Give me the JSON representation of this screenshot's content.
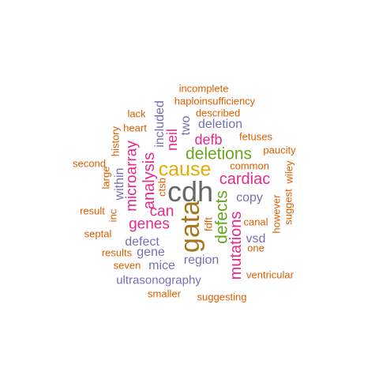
{
  "colors": {
    "orange": "#d95f02",
    "purple": "#7570b3",
    "magenta": "#e7298a",
    "green": "#66a61e",
    "gold": "#e6ab02",
    "brown": "#a6761d",
    "gray": "#666666"
  },
  "words": [
    {
      "text": "cdh",
      "color": "#666666"
    },
    {
      "text": "gata",
      "color": "#a6761d"
    },
    {
      "text": "cause",
      "color": "#e6ab02"
    },
    {
      "text": "deletions",
      "color": "#66a61e"
    },
    {
      "text": "defects",
      "color": "#66a61e"
    },
    {
      "text": "cardiac",
      "color": "#e7298a"
    },
    {
      "text": "mutations",
      "color": "#e7298a"
    },
    {
      "text": "analysis",
      "color": "#e7298a"
    },
    {
      "text": "microarray",
      "color": "#e7298a"
    },
    {
      "text": "genes",
      "color": "#e7298a"
    },
    {
      "text": "can",
      "color": "#e7298a"
    },
    {
      "text": "defb",
      "color": "#e7298a"
    },
    {
      "text": "neil",
      "color": "#e7298a"
    },
    {
      "text": "deletion",
      "color": "#7570b3"
    },
    {
      "text": "included",
      "color": "#7570b3"
    },
    {
      "text": "two",
      "color": "#7570b3"
    },
    {
      "text": "copy",
      "color": "#7570b3"
    },
    {
      "text": "vsd",
      "color": "#7570b3"
    },
    {
      "text": "region",
      "color": "#7570b3"
    },
    {
      "text": "mice",
      "color": "#7570b3"
    },
    {
      "text": "gene",
      "color": "#7570b3"
    },
    {
      "text": "defect",
      "color": "#7570b3"
    },
    {
      "text": "within",
      "color": "#7570b3"
    },
    {
      "text": "ultrasonography",
      "color": "#7570b3"
    },
    {
      "text": "incomplete",
      "color": "#d95f02"
    },
    {
      "text": "haploinsufficiency",
      "color": "#d95f02"
    },
    {
      "text": "lack",
      "color": "#d95f02"
    },
    {
      "text": "described",
      "color": "#d95f02"
    },
    {
      "text": "heart",
      "color": "#d95f02"
    },
    {
      "text": "history",
      "color": "#d95f02"
    },
    {
      "text": "fetuses",
      "color": "#d95f02"
    },
    {
      "text": "paucity",
      "color": "#d95f02"
    },
    {
      "text": "second",
      "color": "#d95f02"
    },
    {
      "text": "common",
      "color": "#d95f02"
    },
    {
      "text": "wiley",
      "color": "#d95f02"
    },
    {
      "text": "large",
      "color": "#d95f02"
    },
    {
      "text": "ctsb",
      "color": "#d95f02"
    },
    {
      "text": "suggest",
      "color": "#d95f02"
    },
    {
      "text": "result",
      "color": "#d95f02"
    },
    {
      "text": "inc",
      "color": "#d95f02"
    },
    {
      "text": "fdft",
      "color": "#d95f02"
    },
    {
      "text": "however",
      "color": "#d95f02"
    },
    {
      "text": "canal",
      "color": "#d95f02"
    },
    {
      "text": "septal",
      "color": "#d95f02"
    },
    {
      "text": "one",
      "color": "#d95f02"
    },
    {
      "text": "results",
      "color": "#d95f02"
    },
    {
      "text": "seven",
      "color": "#d95f02"
    },
    {
      "text": "ventricular",
      "color": "#d95f02"
    },
    {
      "text": "smaller",
      "color": "#d95f02"
    },
    {
      "text": "suggesting",
      "color": "#d95f02"
    }
  ]
}
